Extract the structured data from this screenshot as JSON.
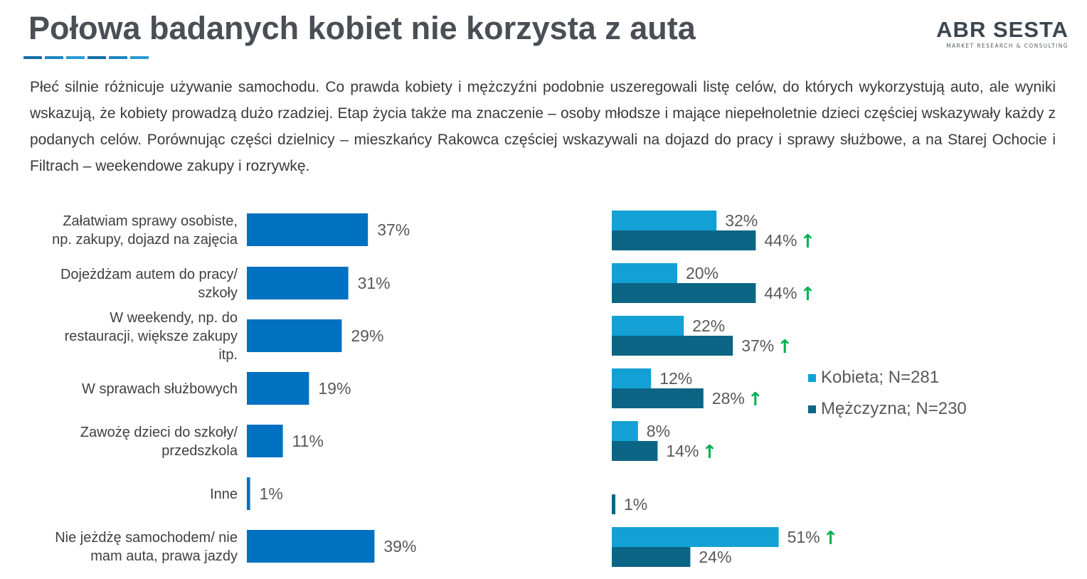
{
  "header": {
    "title": "Połowa badanych kobiet nie korzysta z auta",
    "rule_colors": [
      "#0f6ea5",
      "#1e85c2",
      "#2b9ad4",
      "#0f6ea5",
      "#1e85c2",
      "#2b9ad4"
    ]
  },
  "logo": {
    "brand": "ABR SESTA",
    "tagline": "MARKET RESEARCH & CONSULTING"
  },
  "intro_text": "Płeć silnie różnicuje używanie samochodu. Co prawda kobiety i mężczyźni podobnie uszeregowali listę celów, do których wykorzystują auto, ale wyniki wskazują, że kobiety prowadzą dużo rzadziej. Etap życia także ma znaczenie – osoby młodsze i mające niepełnoletnie dzieci częściej wskazywały każdy z podanych celów. Porównując części dzielnicy – mieszkańcy Rakowca częściej wskazywali na dojazd do pracy i sprawy służbowe, a na Starej Ochocie i Filtrach – weekendowe zakupy i rozrywkę.",
  "chart_data": [
    {
      "type": "bar",
      "orientation": "horizontal",
      "categories": [
        "Załatwiam sprawy osobiste, np. zakupy, dojazd na zajęcia",
        "Dojeżdżam autem do pracy/ szkoły",
        "W weekendy, np. do restauracji, większe zakupy itp.",
        "W sprawach służbowych",
        "Zawożę dzieci do szkoły/ przedszkola",
        "Inne",
        "Nie jeżdżę samochodem/ nie mam auta, prawa jazdy"
      ],
      "category_lines": [
        [
          "Załatwiam sprawy osobiste,",
          "np. zakupy, dojazd na zajęcia"
        ],
        [
          "Dojeżdżam autem do pracy/",
          "szkoły"
        ],
        [
          "W weekendy, np. do",
          "restauracji, większe zakupy",
          "itp."
        ],
        [
          "W sprawach służbowych"
        ],
        [
          "Zawożę dzieci do szkoły/",
          "przedszkola"
        ],
        [
          "Inne"
        ],
        [
          "Nie jeżdżę samochodem/ nie",
          "mam auta, prawa jazdy"
        ]
      ],
      "values": [
        37,
        31,
        29,
        19,
        11,
        1,
        39
      ],
      "value_labels": [
        "37%",
        "31%",
        "29%",
        "19%",
        "11%",
        "1%",
        "39%"
      ],
      "unit": "%",
      "color": "#0070c0"
    },
    {
      "type": "bar",
      "orientation": "horizontal",
      "grouped": true,
      "series": [
        {
          "name": "Kobieta; N=281",
          "color": "#13a0d4",
          "values": [
            32,
            20,
            22,
            12,
            8,
            null,
            51
          ],
          "value_labels": [
            "32%",
            "20%",
            "22%",
            "12%",
            "8%",
            "",
            "51%"
          ],
          "significant_higher": [
            false,
            false,
            false,
            false,
            false,
            false,
            true
          ]
        },
        {
          "name": "Mężczyzna; N=230",
          "color": "#0c6585",
          "values": [
            44,
            44,
            37,
            28,
            14,
            1,
            24
          ],
          "value_labels": [
            "44%",
            "44%",
            "37%",
            "28%",
            "14%",
            "1%",
            "24%"
          ],
          "significant_higher": [
            true,
            true,
            true,
            true,
            true,
            false,
            false
          ]
        }
      ],
      "arrow_color": "#00b050",
      "arrow_symbol": "↑",
      "legend_position": "right"
    }
  ]
}
